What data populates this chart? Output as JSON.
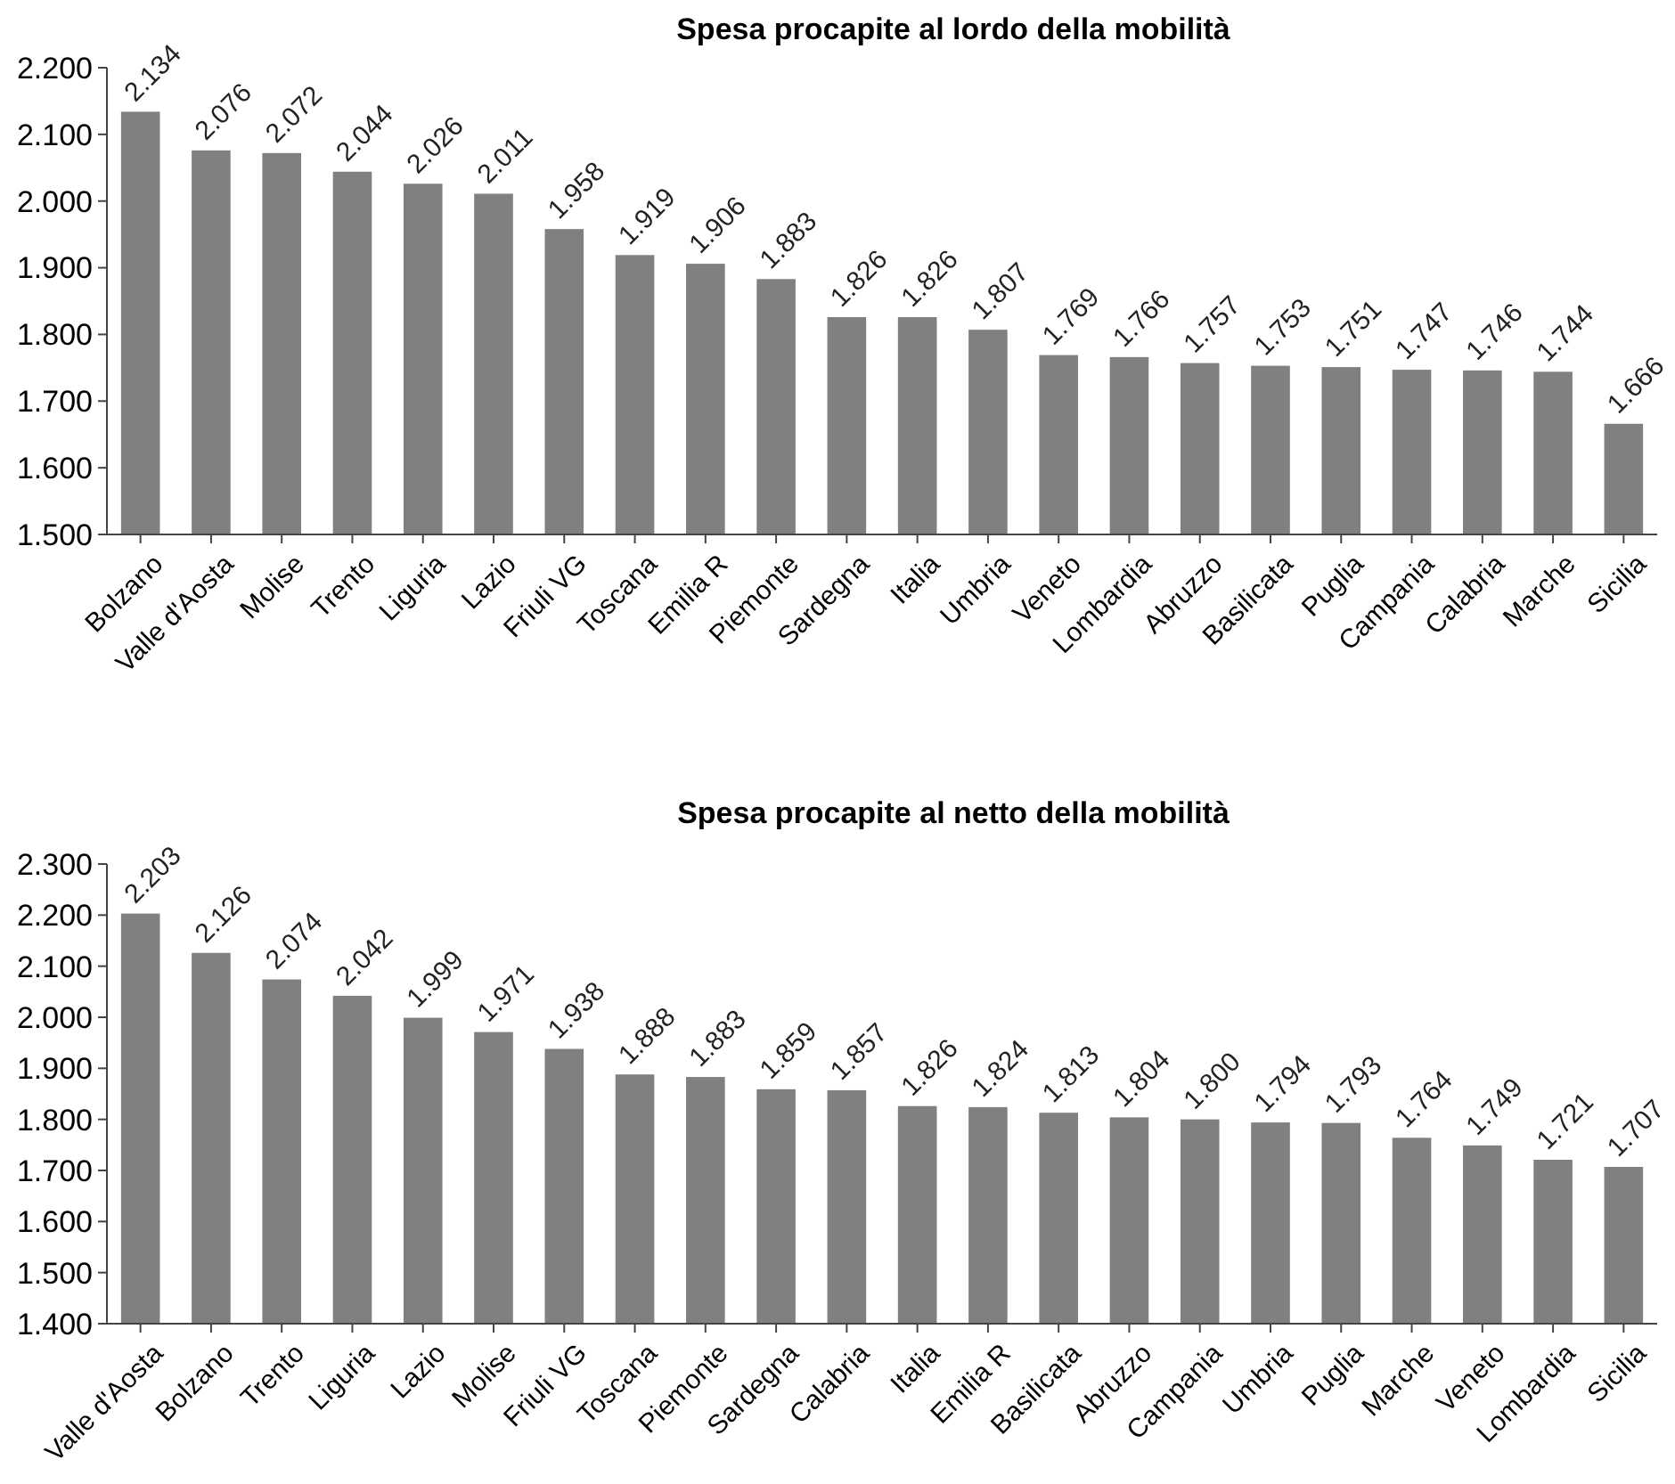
{
  "chart_data": [
    {
      "type": "bar",
      "title": "Spesa procapite al lordo della mobilità",
      "categories": [
        "Bolzano",
        "Valle d'Aosta",
        "Molise",
        "Trento",
        "Liguria",
        "Lazio",
        "Friuli VG",
        "Toscana",
        "Emilia R",
        "Piemonte",
        "Sardegna",
        "Italia",
        "Umbria",
        "Veneto",
        "Lombardia",
        "Abruzzo",
        "Basilicata",
        "Puglia",
        "Campania",
        "Calabria",
        "Marche",
        "Sicilia"
      ],
      "values": [
        2134,
        2076,
        2072,
        2044,
        2026,
        2011,
        1958,
        1919,
        1906,
        1883,
        1826,
        1826,
        1807,
        1769,
        1766,
        1757,
        1753,
        1751,
        1747,
        1746,
        1744,
        1666
      ],
      "value_labels": [
        "2.134",
        "2.076",
        "2.072",
        "2.044",
        "2.026",
        "2.011",
        "1.958",
        "1.919",
        "1.906",
        "1.883",
        "1.826",
        "1.826",
        "1.807",
        "1.769",
        "1.766",
        "1.757",
        "1.753",
        "1.751",
        "1.747",
        "1.746",
        "1.744",
        "1.666"
      ],
      "color": "#808080",
      "ylim": [
        1500,
        2200
      ],
      "yticks": [
        {
          "value": 1500,
          "label": "1.500"
        },
        {
          "value": 1600,
          "label": "1.600"
        },
        {
          "value": 1700,
          "label": "1.700"
        },
        {
          "value": 1800,
          "label": "1.800"
        },
        {
          "value": 1900,
          "label": "1.900"
        },
        {
          "value": 2000,
          "label": "2.000"
        },
        {
          "value": 2100,
          "label": "2.100"
        },
        {
          "value": 2200,
          "label": "2.200"
        }
      ]
    },
    {
      "type": "bar",
      "title": "Spesa procapite al netto della mobilità",
      "categories": [
        "Valle d'Aosta",
        "Bolzano",
        "Trento",
        "Liguria",
        "Lazio",
        "Molise",
        "Friuli VG",
        "Toscana",
        "Piemonte",
        "Sardegna",
        "Calabria",
        "Italia",
        "Emilia R",
        "Basilicata",
        "Abruzzo",
        "Campania",
        "Umbria",
        "Puglia",
        "Marche",
        "Veneto",
        "Lombardia",
        "Sicilia"
      ],
      "values": [
        2203,
        2126,
        2074,
        2042,
        1999,
        1971,
        1938,
        1888,
        1883,
        1859,
        1857,
        1826,
        1824,
        1813,
        1804,
        1800,
        1794,
        1793,
        1764,
        1749,
        1721,
        1707
      ],
      "value_labels": [
        "2.203",
        "2.126",
        "2.074",
        "2.042",
        "1.999",
        "1.971",
        "1.938",
        "1.888",
        "1.883",
        "1.859",
        "1.857",
        "1.826",
        "1.824",
        "1.813",
        "1.804",
        "1.800",
        "1.794",
        "1.793",
        "1.764",
        "1.749",
        "1.721",
        "1.707"
      ],
      "color": "#808080",
      "ylim": [
        1400,
        2300
      ],
      "yticks": [
        {
          "value": 1400,
          "label": "1.400"
        },
        {
          "value": 1500,
          "label": "1.500"
        },
        {
          "value": 1600,
          "label": "1.600"
        },
        {
          "value": 1700,
          "label": "1.700"
        },
        {
          "value": 1800,
          "label": "1.800"
        },
        {
          "value": 1900,
          "label": "1.900"
        },
        {
          "value": 2000,
          "label": "2.000"
        },
        {
          "value": 2100,
          "label": "2.100"
        },
        {
          "value": 2200,
          "label": "2.200"
        },
        {
          "value": 2300,
          "label": "2.300"
        }
      ]
    }
  ]
}
